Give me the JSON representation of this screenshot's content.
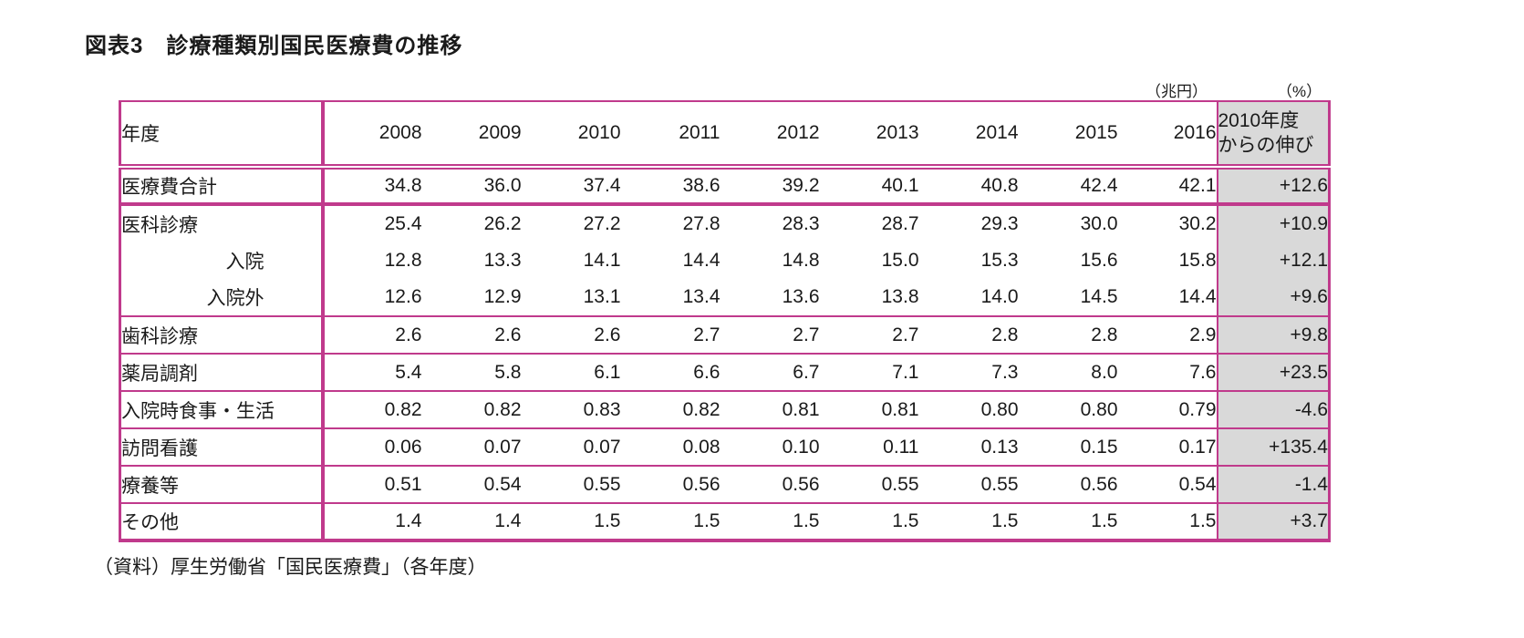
{
  "title": "図表3　診療種類別国民医療費の推移",
  "units": {
    "amount": "（兆円）",
    "percent": "（%）"
  },
  "source": "（資料）厚生労働省「国民医療費」（各年度）",
  "colors": {
    "accent": "#c03a8c",
    "growth_column_bg": "#d9d9d9"
  },
  "chart_data": {
    "type": "table",
    "title": "診療種類別国民医療費の推移",
    "value_unit": "兆円",
    "growth_unit": "%",
    "corner_label": "年度",
    "years": [
      "2008",
      "2009",
      "2010",
      "2011",
      "2012",
      "2013",
      "2014",
      "2015",
      "2016"
    ],
    "growth_header": "2010年度からの伸び",
    "growth_header_lines": [
      "2010年度",
      "からの伸び"
    ],
    "rows": [
      {
        "label": "医療費合計",
        "indent": false,
        "values": [
          "34.8",
          "36.0",
          "37.4",
          "38.6",
          "39.2",
          "40.1",
          "40.8",
          "42.4",
          "42.1"
        ],
        "growth": "+12.6"
      },
      {
        "label": "医科診療",
        "indent": false,
        "values": [
          "25.4",
          "26.2",
          "27.2",
          "27.8",
          "28.3",
          "28.7",
          "29.3",
          "30.0",
          "30.2"
        ],
        "growth": "+10.9"
      },
      {
        "label": "入院",
        "indent": true,
        "values": [
          "12.8",
          "13.3",
          "14.1",
          "14.4",
          "14.8",
          "15.0",
          "15.3",
          "15.6",
          "15.8"
        ],
        "growth": "+12.1"
      },
      {
        "label": "入院外",
        "indent": true,
        "values": [
          "12.6",
          "12.9",
          "13.1",
          "13.4",
          "13.6",
          "13.8",
          "14.0",
          "14.5",
          "14.4"
        ],
        "growth": "+9.6"
      },
      {
        "label": "歯科診療",
        "indent": false,
        "values": [
          "2.6",
          "2.6",
          "2.6",
          "2.7",
          "2.7",
          "2.7",
          "2.8",
          "2.8",
          "2.9"
        ],
        "growth": "+9.8"
      },
      {
        "label": "薬局調剤",
        "indent": false,
        "values": [
          "5.4",
          "5.8",
          "6.1",
          "6.6",
          "6.7",
          "7.1",
          "7.3",
          "8.0",
          "7.6"
        ],
        "growth": "+23.5"
      },
      {
        "label": "入院時食事・生活",
        "indent": false,
        "values": [
          "0.82",
          "0.82",
          "0.83",
          "0.82",
          "0.81",
          "0.81",
          "0.80",
          "0.80",
          "0.79"
        ],
        "growth": "-4.6"
      },
      {
        "label": "訪問看護",
        "indent": false,
        "values": [
          "0.06",
          "0.07",
          "0.07",
          "0.08",
          "0.10",
          "0.11",
          "0.13",
          "0.15",
          "0.17"
        ],
        "growth": "+135.4"
      },
      {
        "label": "療養等",
        "indent": false,
        "values": [
          "0.51",
          "0.54",
          "0.55",
          "0.56",
          "0.56",
          "0.55",
          "0.55",
          "0.56",
          "0.54"
        ],
        "growth": "-1.4"
      },
      {
        "label": "その他",
        "indent": false,
        "values": [
          "1.4",
          "1.4",
          "1.5",
          "1.5",
          "1.5",
          "1.5",
          "1.5",
          "1.5",
          "1.5"
        ],
        "growth": "+3.7"
      }
    ]
  }
}
